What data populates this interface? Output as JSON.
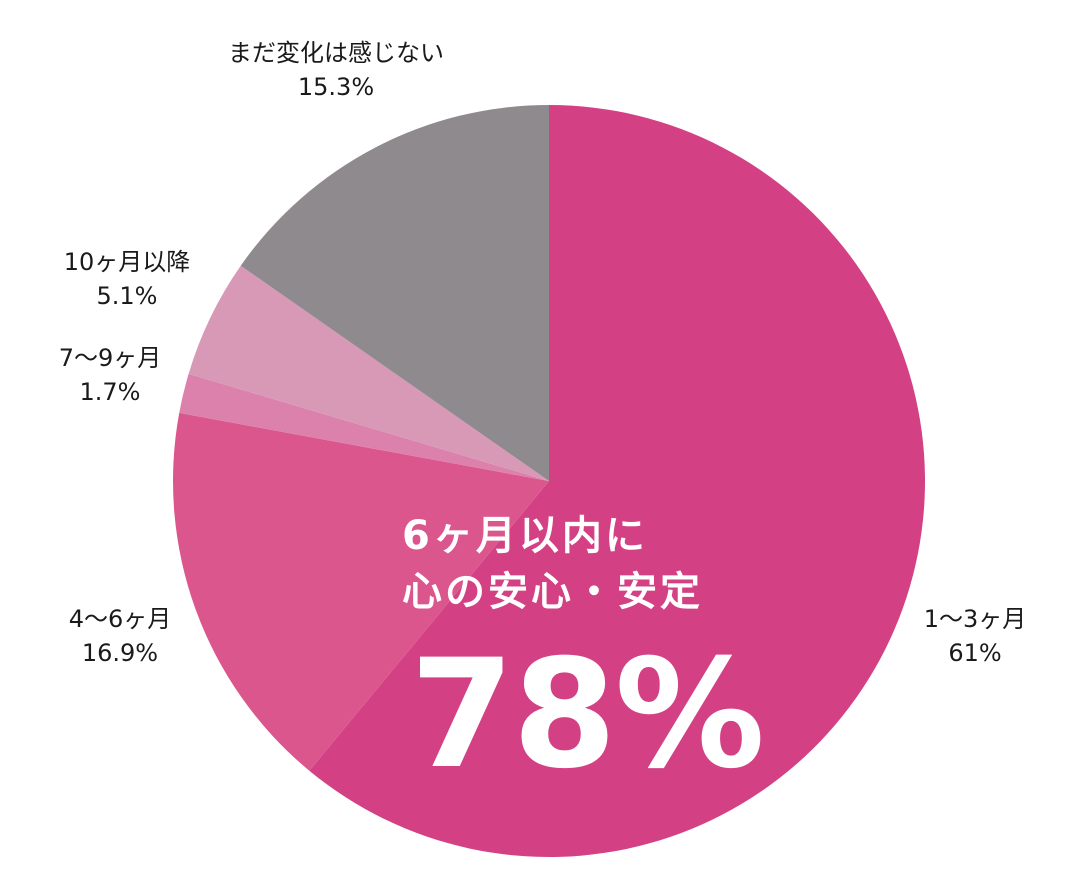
{
  "chart_data": {
    "type": "pie",
    "title": "",
    "start_angle_deg": 0,
    "direction": "clockwise",
    "center": [
      549,
      481
    ],
    "radius": 376,
    "slices": [
      {
        "label": "1〜3ヶ月",
        "value": 61,
        "display": "61%",
        "color": "#d44084"
      },
      {
        "label": "4〜6ヶ月",
        "value": 16.9,
        "display": "16.9%",
        "color": "#dc568e"
      },
      {
        "label": "7〜9ヶ月",
        "value": 1.7,
        "display": "1.7%",
        "color": "#db81ab"
      },
      {
        "label": "10ヶ月以降",
        "value": 5.1,
        "display": "5.1%",
        "color": "#d899b7"
      },
      {
        "label": "まだ変化は感じない",
        "value": 15.3,
        "display": "15.3%",
        "color": "#8e8a8e"
      }
    ],
    "annotation": {
      "line1": "6ヶ月以内に",
      "line2": "心の安心・安定",
      "value": "78%"
    }
  },
  "labels": {
    "l1": {
      "name": "1〜3ヶ月",
      "pct": "61%"
    },
    "l2": {
      "name": "4〜6ヶ月",
      "pct": "16.9%"
    },
    "l3": {
      "name": "7〜9ヶ月",
      "pct": "1.7%"
    },
    "l4": {
      "name": "10ヶ月以降",
      "pct": "5.1%"
    },
    "l5": {
      "name": "まだ変化は感じない",
      "pct": "15.3%"
    }
  },
  "headline": {
    "line1": "6ヶ月以内に",
    "line2": "心の安心・安定",
    "big": "78%"
  }
}
